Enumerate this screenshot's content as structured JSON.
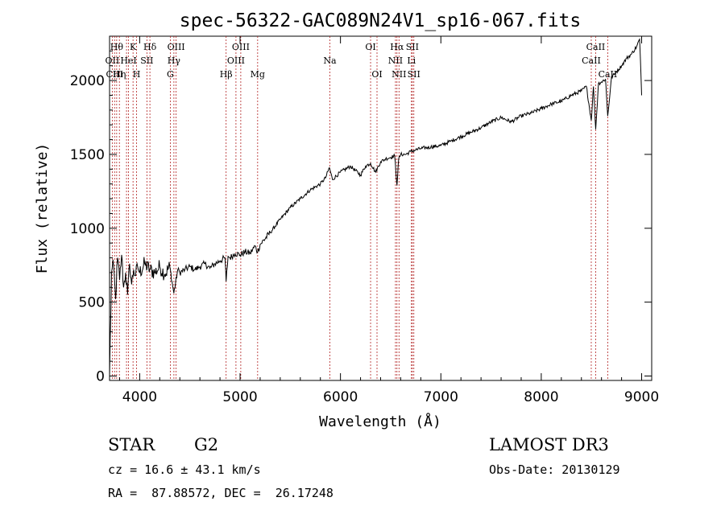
{
  "chart_data": {
    "type": "line",
    "title": "spec-56322-GAC089N24V1_sp16-067.fits",
    "xlabel": "Wavelength (Å)",
    "ylabel": "Flux (relative)",
    "xlim": [
      3700,
      9100
    ],
    "ylim": [
      -30,
      2300
    ],
    "xticks": [
      4000,
      5000,
      6000,
      7000,
      8000,
      9000
    ],
    "yticks": [
      0,
      500,
      1000,
      1500,
      2000
    ],
    "grid": false,
    "series": [
      {
        "name": "flux",
        "x": [
          3700,
          3720,
          3740,
          3760,
          3780,
          3800,
          3820,
          3840,
          3860,
          3880,
          3900,
          3920,
          3940,
          3960,
          3980,
          4000,
          4050,
          4100,
          4150,
          4200,
          4250,
          4300,
          4340,
          4380,
          4400,
          4450,
          4500,
          4550,
          4600,
          4650,
          4700,
          4750,
          4800,
          4850,
          4861,
          4880,
          4900,
          4950,
          5000,
          5050,
          5100,
          5150,
          5175,
          5200,
          5300,
          5400,
          5500,
          5600,
          5700,
          5800,
          5850,
          5890,
          5920,
          6000,
          6100,
          6200,
          6250,
          6300,
          6350,
          6400,
          6450,
          6500,
          6540,
          6563,
          6580,
          6600,
          6650,
          6700,
          6750,
          6800,
          6900,
          7000,
          7100,
          7200,
          7300,
          7400,
          7500,
          7600,
          7700,
          7800,
          7900,
          8000,
          8100,
          8200,
          8300,
          8400,
          8450,
          8498,
          8520,
          8542,
          8570,
          8600,
          8640,
          8662,
          8700,
          8750,
          8800,
          8850,
          8900,
          8950,
          8980,
          9000
        ],
        "values": [
          0,
          700,
          750,
          520,
          800,
          650,
          820,
          600,
          700,
          550,
          760,
          620,
          720,
          680,
          740,
          700,
          760,
          720,
          700,
          740,
          690,
          740,
          560,
          720,
          700,
          720,
          740,
          720,
          740,
          760,
          730,
          760,
          780,
          800,
          640,
          810,
          800,
          830,
          820,
          840,
          830,
          880,
          840,
          890,
          970,
          1060,
          1140,
          1200,
          1260,
          1300,
          1340,
          1410,
          1330,
          1380,
          1420,
          1360,
          1420,
          1440,
          1380,
          1450,
          1470,
          1480,
          1490,
          1290,
          1470,
          1500,
          1500,
          1520,
          1530,
          1540,
          1550,
          1560,
          1590,
          1620,
          1650,
          1680,
          1720,
          1750,
          1720,
          1760,
          1780,
          1810,
          1840,
          1860,
          1900,
          1930,
          1960,
          1730,
          1960,
          1670,
          1980,
          1990,
          2010,
          1760,
          2020,
          2060,
          2100,
          2150,
          2180,
          2230,
          2280,
          1900
        ]
      }
    ],
    "lines": [
      {
        "w": 3727,
        "label": "OII",
        "row": 1
      },
      {
        "w": 3750,
        "label": "CIII",
        "row": 2
      },
      {
        "w": 3771,
        "label": "Hθ",
        "row": 0
      },
      {
        "w": 3798,
        "label": "Hη",
        "row": 2
      },
      {
        "w": 3869,
        "label": "",
        "row": -1
      },
      {
        "w": 3889,
        "label": "HeI",
        "row": 1
      },
      {
        "w": 3934,
        "label": "K",
        "row": 0
      },
      {
        "w": 3969,
        "label": "H",
        "row": 2
      },
      {
        "w": 4072,
        "label": "SII",
        "row": 1
      },
      {
        "w": 4102,
        "label": "Hδ",
        "row": 0
      },
      {
        "w": 4305,
        "label": "G",
        "row": 2
      },
      {
        "w": 4341,
        "label": "Hγ",
        "row": 1
      },
      {
        "w": 4363,
        "label": "OIII",
        "row": 0
      },
      {
        "w": 4861,
        "label": "Hβ",
        "row": 2
      },
      {
        "w": 4959,
        "label": "OIII",
        "row": 1
      },
      {
        "w": 5007,
        "label": "OIII",
        "row": 0
      },
      {
        "w": 5175,
        "label": "Mg",
        "row": 2
      },
      {
        "w": 5894,
        "label": "Na",
        "row": 1
      },
      {
        "w": 6300,
        "label": "OI",
        "row": 0
      },
      {
        "w": 6364,
        "label": "OI",
        "row": 2
      },
      {
        "w": 6548,
        "label": "NII",
        "row": 1
      },
      {
        "w": 6563,
        "label": "Hα",
        "row": 0
      },
      {
        "w": 6583,
        "label": "NII",
        "row": 2
      },
      {
        "w": 6707,
        "label": "Li",
        "row": 1
      },
      {
        "w": 6716,
        "label": "SII",
        "row": 0
      },
      {
        "w": 6731,
        "label": "SII",
        "row": 2
      },
      {
        "w": 8498,
        "label": "CaII",
        "row": 1
      },
      {
        "w": 8542,
        "label": "CaII",
        "row": 0
      },
      {
        "w": 8662,
        "label": "CaII",
        "row": 2
      }
    ]
  },
  "info": {
    "object_class": "STAR",
    "subclass": "G2",
    "survey": "LAMOST DR3",
    "cz": "cz = 16.6 ± 43.1 km/s",
    "obs_date": "Obs-Date: 20130129",
    "coords": "RA =  87.88572, DEC =  26.17248"
  },
  "colors": {
    "line_marker": "#b22222",
    "spectrum": "#000000",
    "axes": "#000000"
  }
}
